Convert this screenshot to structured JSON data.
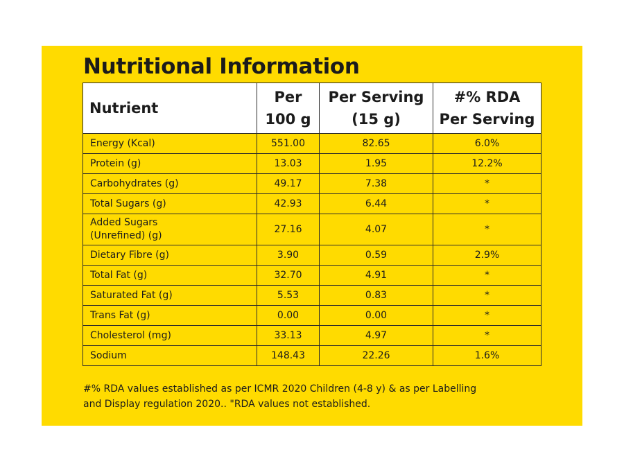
{
  "title": "Nutritional Information",
  "background_color": "#FFDB00",
  "table": {
    "headers": [
      {
        "lines": [
          "Nutrient"
        ]
      },
      {
        "lines": [
          "Per",
          "100 g"
        ]
      },
      {
        "lines": [
          "Per Serving",
          "(15 g)"
        ]
      },
      {
        "lines": [
          "#% RDA",
          "Per Serving"
        ]
      }
    ],
    "rows": [
      {
        "name": [
          "Energy (Kcal)"
        ],
        "per100g": "551.00",
        "perServing": "82.65",
        "rda": "6.0%"
      },
      {
        "name": [
          "Protein (g)"
        ],
        "per100g": "13.03",
        "perServing": "1.95",
        "rda": "12.2%"
      },
      {
        "name": [
          "Carbohydrates (g)"
        ],
        "per100g": "49.17",
        "perServing": "7.38",
        "rda": "*"
      },
      {
        "name": [
          "Total Sugars (g)"
        ],
        "per100g": "42.93",
        "perServing": "6.44",
        "rda": "*"
      },
      {
        "name": [
          "Added Sugars",
          "(Unrefined) (g)"
        ],
        "per100g": "27.16",
        "perServing": "4.07",
        "rda": "*"
      },
      {
        "name": [
          "Dietary Fibre (g)"
        ],
        "per100g": "3.90",
        "perServing": "0.59",
        "rda": "2.9%"
      },
      {
        "name": [
          "Total Fat (g)"
        ],
        "per100g": "32.70",
        "perServing": "4.91",
        "rda": "*"
      },
      {
        "name": [
          "Saturated Fat (g)"
        ],
        "per100g": "5.53",
        "perServing": "0.83",
        "rda": "*"
      },
      {
        "name": [
          "Trans Fat (g)"
        ],
        "per100g": "0.00",
        "perServing": "0.00",
        "rda": "*"
      },
      {
        "name": [
          "Cholesterol (mg)"
        ],
        "per100g": "33.13",
        "perServing": "4.97",
        "rda": "*"
      },
      {
        "name": [
          "Sodium"
        ],
        "per100g": "148.43",
        "perServing": "22.26",
        "rda": "1.6%"
      }
    ]
  },
  "footnote": {
    "lines": [
      "#% RDA values established as per ICMR 2020 Children (4-8 y) & as per Labelling",
      "and Display regulation 2020.. \"RDA values not established."
    ]
  }
}
